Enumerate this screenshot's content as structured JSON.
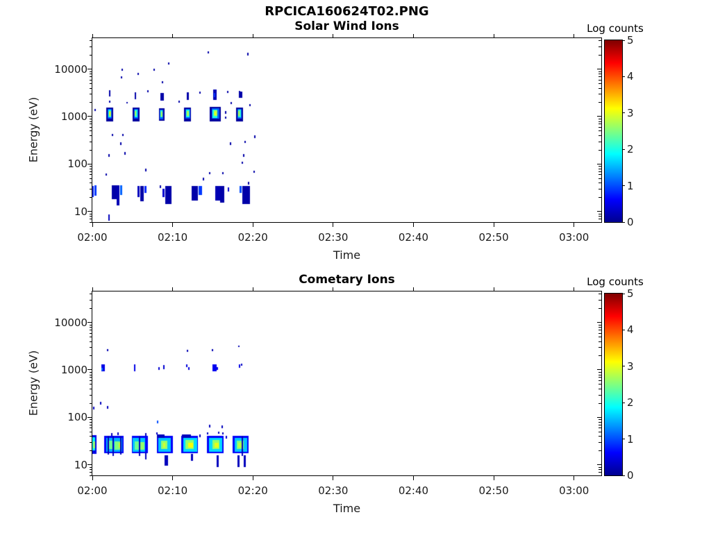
{
  "figure_title": "RPCICA160624T02.PNG",
  "chart_data": [
    {
      "type": "heatmap",
      "title": "Solar Wind Ions",
      "xlabel": "Time",
      "ylabel": "Energy (eV)",
      "colorbar_label": "Log counts",
      "colormap": "jet",
      "y_scale": "log",
      "x_range_minutes": [
        0,
        63.4
      ],
      "y_range_ev": [
        5.93,
        45000
      ],
      "y_ticks": [
        10,
        100,
        1000,
        10000
      ],
      "x_ticks": [
        {
          "m": 0,
          "label": "02:00"
        },
        {
          "m": 10,
          "label": "02:10"
        },
        {
          "m": 20,
          "label": "02:20"
        },
        {
          "m": 30,
          "label": "02:30"
        },
        {
          "m": 40,
          "label": "02:40"
        },
        {
          "m": 50,
          "label": "02:50"
        },
        {
          "m": 60,
          "label": "03:00"
        }
      ],
      "colorbar_range": [
        0,
        5
      ],
      "colorbar_ticks": [
        0,
        1,
        2,
        3,
        4,
        5
      ],
      "colormap_stops": [
        {
          "pos": 0,
          "color": "#00008f"
        },
        {
          "pos": 0.125,
          "color": "#0000ff"
        },
        {
          "pos": 0.375,
          "color": "#00ffff"
        },
        {
          "pos": 0.625,
          "color": "#ffff00"
        },
        {
          "pos": 0.875,
          "color": "#ff0000"
        },
        {
          "pos": 1,
          "color": "#7f0000"
        }
      ],
      "cells": [
        [
          1.75,
          2.6,
          800,
          1550,
          0.15
        ],
        [
          1.9,
          2.45,
          900,
          1450,
          1.0
        ],
        [
          2.0,
          2.35,
          950,
          1380,
          1.9
        ],
        [
          2.05,
          2.3,
          1000,
          1320,
          2.6
        ],
        [
          2.1,
          2.25,
          1050,
          1250,
          3.0
        ],
        [
          5.0,
          5.85,
          800,
          1550,
          0.15
        ],
        [
          5.15,
          5.7,
          900,
          1450,
          1.0
        ],
        [
          5.25,
          5.6,
          950,
          1380,
          2.0
        ],
        [
          5.3,
          5.5,
          1020,
          1300,
          2.7
        ],
        [
          8.3,
          9.0,
          820,
          1500,
          0.15
        ],
        [
          8.4,
          8.85,
          900,
          1420,
          1.1
        ],
        [
          8.5,
          8.75,
          960,
          1350,
          2.1
        ],
        [
          8.55,
          8.7,
          1020,
          1280,
          2.7
        ],
        [
          11.45,
          12.35,
          800,
          1550,
          0.15
        ],
        [
          11.6,
          12.2,
          900,
          1450,
          1.0
        ],
        [
          11.7,
          12.1,
          950,
          1380,
          2.0
        ],
        [
          11.75,
          12.0,
          1020,
          1300,
          2.7
        ],
        [
          14.65,
          16.0,
          780,
          1600,
          0.15
        ],
        [
          14.85,
          15.8,
          880,
          1480,
          1.1
        ],
        [
          15.0,
          15.6,
          950,
          1400,
          2.0
        ],
        [
          15.1,
          15.5,
          1000,
          1330,
          2.7
        ],
        [
          15.2,
          15.4,
          1050,
          1250,
          3.0
        ],
        [
          17.9,
          18.75,
          800,
          1550,
          0.15
        ],
        [
          18.05,
          18.6,
          900,
          1450,
          1.1
        ],
        [
          18.15,
          18.5,
          950,
          1380,
          2.1
        ],
        [
          18.2,
          18.4,
          1020,
          1300,
          2.8
        ],
        [
          2.05,
          2.25,
          2700,
          3600,
          0.2
        ],
        [
          2.05,
          2.2,
          2000,
          2200,
          0.2
        ],
        [
          5.3,
          5.5,
          2250,
          3200,
          0.2
        ],
        [
          8.45,
          8.85,
          2200,
          3150,
          0.2
        ],
        [
          11.75,
          12.05,
          2250,
          3250,
          0.2
        ],
        [
          15.05,
          15.5,
          2250,
          3700,
          0.25
        ],
        [
          15.1,
          15.3,
          2500,
          3100,
          0.9
        ],
        [
          18.25,
          18.7,
          2500,
          3400,
          0.2
        ],
        [
          18.25,
          18.4,
          3100,
          3500,
          0.2
        ],
        [
          0.25,
          0.4,
          1280,
          1430,
          0.2
        ],
        [
          3.55,
          3.7,
          6500,
          7100,
          0.2
        ],
        [
          3.6,
          3.75,
          9400,
          10300,
          0.2
        ],
        [
          5.65,
          5.8,
          7500,
          8200,
          0.2
        ],
        [
          7.65,
          7.8,
          9400,
          10300,
          0.2
        ],
        [
          9.4,
          9.55,
          12500,
          13800,
          0.2
        ],
        [
          8.65,
          8.8,
          5000,
          5500,
          0.2
        ],
        [
          14.35,
          14.5,
          21500,
          24000,
          0.2
        ],
        [
          19.3,
          19.45,
          19500,
          22000,
          0.2
        ],
        [
          6.85,
          7.0,
          3250,
          3550,
          0.2
        ],
        [
          4.25,
          4.4,
          1850,
          2000,
          0.2
        ],
        [
          10.75,
          10.9,
          1950,
          2150,
          0.2
        ],
        [
          16.55,
          16.7,
          1150,
          1300,
          0.2
        ],
        [
          16.55,
          16.7,
          880,
          990,
          0.2
        ],
        [
          16.75,
          16.9,
          3200,
          3500,
          0.2
        ],
        [
          17.25,
          17.4,
          1850,
          2050,
          0.2
        ],
        [
          19.55,
          19.7,
          1650,
          1850,
          0.2
        ],
        [
          13.35,
          13.5,
          3050,
          3350,
          0.2
        ],
        [
          2.45,
          2.6,
          385,
          430,
          0.2
        ],
        [
          3.75,
          3.9,
          385,
          430,
          0.2
        ],
        [
          3.45,
          3.6,
          255,
          290,
          0.2
        ],
        [
          3.95,
          4.1,
          155,
          180,
          0.2
        ],
        [
          1.95,
          2.1,
          140,
          160,
          0.2
        ],
        [
          6.55,
          6.7,
          71,
          80,
          0.2
        ],
        [
          1.65,
          1.8,
          56,
          63,
          0.2
        ],
        [
          17.15,
          17.3,
          250,
          285,
          0.2
        ],
        [
          18.95,
          19.1,
          272,
          305,
          0.2
        ],
        [
          20.15,
          20.3,
          355,
          400,
          0.2
        ],
        [
          18.75,
          18.9,
          142,
          160,
          0.2
        ],
        [
          18.6,
          18.75,
          99,
          111,
          0.2
        ],
        [
          13.75,
          13.9,
          46,
          52,
          0.2
        ],
        [
          14.55,
          14.7,
          60,
          67,
          0.2
        ],
        [
          16.15,
          16.3,
          60,
          67,
          0.2
        ],
        [
          20.05,
          20.2,
          65,
          73,
          0.2
        ],
        [
          19.35,
          19.5,
          37,
          42,
          0.2
        ],
        [
          8.35,
          8.5,
          31,
          35,
          0.2
        ],
        [
          0.0,
          0.12,
          20,
          34,
          0.8
        ],
        [
          0.3,
          0.55,
          21,
          35,
          0.9
        ],
        [
          2.4,
          3.1,
          18,
          35,
          0.2
        ],
        [
          3.0,
          3.35,
          13,
          35,
          0.25
        ],
        [
          3.5,
          3.8,
          22,
          35,
          1.1
        ],
        [
          5.6,
          5.9,
          20,
          34,
          0.3
        ],
        [
          6.0,
          6.4,
          16,
          34,
          0.2
        ],
        [
          6.5,
          6.75,
          24,
          34,
          0.8
        ],
        [
          8.7,
          9.0,
          20,
          30,
          0.4
        ],
        [
          9.1,
          9.85,
          14,
          34,
          0.2
        ],
        [
          12.4,
          13.2,
          17,
          34,
          0.2
        ],
        [
          13.2,
          13.6,
          22,
          34,
          0.9
        ],
        [
          15.35,
          15.95,
          17,
          34,
          0.25
        ],
        [
          15.95,
          16.5,
          15,
          34,
          0.2
        ],
        [
          16.85,
          17.0,
          26,
          32,
          0.4
        ],
        [
          18.35,
          18.65,
          24,
          34,
          1.0
        ],
        [
          18.65,
          19.6,
          14,
          34,
          0.2
        ],
        [
          2.0,
          2.15,
          6.3,
          8.5,
          0.3
        ]
      ]
    },
    {
      "type": "heatmap",
      "title": "Cometary Ions",
      "xlabel": "Time",
      "ylabel": "Energy (eV)",
      "colorbar_label": "Log counts",
      "colormap": "jet",
      "y_scale": "log",
      "x_range_minutes": [
        0,
        63.4
      ],
      "y_range_ev": [
        5.93,
        45000
      ],
      "y_ticks": [
        10,
        100,
        1000,
        10000
      ],
      "x_ticks": [
        {
          "m": 0,
          "label": "02:00"
        },
        {
          "m": 10,
          "label": "02:10"
        },
        {
          "m": 20,
          "label": "02:20"
        },
        {
          "m": 30,
          "label": "02:30"
        },
        {
          "m": 40,
          "label": "02:40"
        },
        {
          "m": 50,
          "label": "02:50"
        },
        {
          "m": 60,
          "label": "03:00"
        }
      ],
      "colorbar_range": [
        0,
        5
      ],
      "colorbar_ticks": [
        0,
        1,
        2,
        3,
        4,
        5
      ],
      "colormap_stops": [
        {
          "pos": 0,
          "color": "#00008f"
        },
        {
          "pos": 0.125,
          "color": "#0000ff"
        },
        {
          "pos": 0.375,
          "color": "#00ffff"
        },
        {
          "pos": 0.625,
          "color": "#ffff00"
        },
        {
          "pos": 0.875,
          "color": "#ff0000"
        },
        {
          "pos": 1,
          "color": "#7f0000"
        }
      ],
      "cells": [
        [
          0.0,
          0.5,
          17,
          42,
          0.5
        ],
        [
          0.02,
          0.4,
          20,
          38,
          1.8
        ],
        [
          0.05,
          0.3,
          22,
          31,
          2.6
        ],
        [
          1.5,
          3.9,
          17,
          40,
          0.6
        ],
        [
          1.7,
          3.7,
          19,
          37,
          1.5
        ],
        [
          2.0,
          2.5,
          21,
          32,
          2.4
        ],
        [
          2.8,
          3.45,
          21,
          31,
          2.5
        ],
        [
          3.3,
          3.5,
          23,
          29,
          2.9
        ],
        [
          1.9,
          2.05,
          16,
          40,
          0.25
        ],
        [
          2.55,
          2.75,
          15,
          40,
          0.3
        ],
        [
          3.5,
          3.7,
          16,
          40,
          0.3
        ],
        [
          2.35,
          2.5,
          41,
          47,
          0.3
        ],
        [
          3.1,
          3.25,
          42,
          48,
          0.3
        ],
        [
          4.9,
          6.9,
          17,
          40,
          0.6
        ],
        [
          5.05,
          6.65,
          19,
          37,
          1.6
        ],
        [
          5.25,
          5.8,
          21,
          31,
          2.4
        ],
        [
          6.0,
          6.5,
          21,
          30,
          2.6
        ],
        [
          5.8,
          6.0,
          15,
          40,
          0.3
        ],
        [
          6.55,
          6.75,
          13,
          18,
          0.3
        ],
        [
          6.6,
          6.75,
          41,
          47,
          0.3
        ],
        [
          8.05,
          10.0,
          17,
          40,
          0.6
        ],
        [
          8.2,
          9.75,
          19,
          37,
          1.6
        ],
        [
          8.55,
          9.3,
          21,
          32,
          2.6
        ],
        [
          8.8,
          9.1,
          23,
          29,
          2.9
        ],
        [
          8.05,
          9.0,
          36,
          43,
          0.3
        ],
        [
          9.0,
          9.45,
          9.5,
          16,
          0.3
        ],
        [
          8.0,
          8.15,
          43,
          48,
          0.3
        ],
        [
          11.1,
          13.2,
          17,
          40,
          0.6
        ],
        [
          11.3,
          13.0,
          19,
          37,
          1.7
        ],
        [
          11.6,
          12.6,
          21,
          33,
          2.6
        ],
        [
          11.9,
          12.5,
          23,
          29,
          3.1
        ],
        [
          11.2,
          12.3,
          36,
          43,
          0.3
        ],
        [
          12.3,
          12.6,
          12,
          17,
          0.3
        ],
        [
          13.35,
          13.5,
          38,
          43,
          0.3
        ],
        [
          14.3,
          16.35,
          17,
          40,
          0.6
        ],
        [
          14.5,
          16.15,
          19,
          37,
          1.7
        ],
        [
          15.0,
          15.9,
          21,
          33,
          2.6
        ],
        [
          15.2,
          15.75,
          23,
          29,
          3.0
        ],
        [
          15.45,
          15.75,
          9,
          16,
          0.3
        ],
        [
          16.6,
          16.75,
          36,
          41,
          0.4
        ],
        [
          14.3,
          14.45,
          43,
          48,
          0.3
        ],
        [
          15.65,
          15.8,
          44,
          49,
          0.3
        ],
        [
          16.15,
          16.3,
          43,
          48,
          0.3
        ],
        [
          17.5,
          19.45,
          17,
          40,
          0.6
        ],
        [
          17.7,
          19.25,
          19,
          37,
          1.6
        ],
        [
          18.0,
          18.9,
          21,
          32,
          2.5
        ],
        [
          18.2,
          18.6,
          23,
          29,
          2.8
        ],
        [
          18.05,
          18.3,
          9,
          16,
          0.3
        ],
        [
          18.85,
          19.1,
          9,
          16,
          0.3
        ],
        [
          18.6,
          18.8,
          15,
          40,
          0.3
        ],
        [
          1.15,
          1.6,
          930,
          1300,
          0.5
        ],
        [
          1.15,
          1.3,
          950,
          1100,
          1.2
        ],
        [
          5.15,
          5.35,
          930,
          1300,
          0.5
        ],
        [
          8.2,
          8.35,
          1000,
          1150,
          0.4
        ],
        [
          8.8,
          9.0,
          1050,
          1270,
          0.4
        ],
        [
          11.7,
          11.9,
          1150,
          1300,
          0.45
        ],
        [
          11.9,
          12.1,
          1000,
          1150,
          0.45
        ],
        [
          15.0,
          15.5,
          930,
          1300,
          0.55
        ],
        [
          15.5,
          15.7,
          1000,
          1150,
          0.5
        ],
        [
          18.25,
          18.45,
          1100,
          1300,
          0.5
        ],
        [
          18.55,
          18.67,
          1200,
          1330,
          0.35
        ],
        [
          1.85,
          2.0,
          2500,
          2750,
          0.25
        ],
        [
          11.75,
          11.9,
          2400,
          2650,
          0.25
        ],
        [
          14.85,
          15.0,
          2450,
          2700,
          0.25
        ],
        [
          18.15,
          18.3,
          2950,
          3200,
          0.25
        ],
        [
          0.1,
          0.25,
          145,
          168,
          0.3
        ],
        [
          0.95,
          1.1,
          182,
          208,
          0.3
        ],
        [
          1.8,
          1.95,
          150,
          172,
          0.3
        ],
        [
          8.05,
          8.2,
          74,
          85,
          1.0
        ],
        [
          14.55,
          14.7,
          62,
          70,
          0.3
        ],
        [
          16.1,
          16.25,
          60,
          68,
          0.3
        ]
      ]
    }
  ]
}
